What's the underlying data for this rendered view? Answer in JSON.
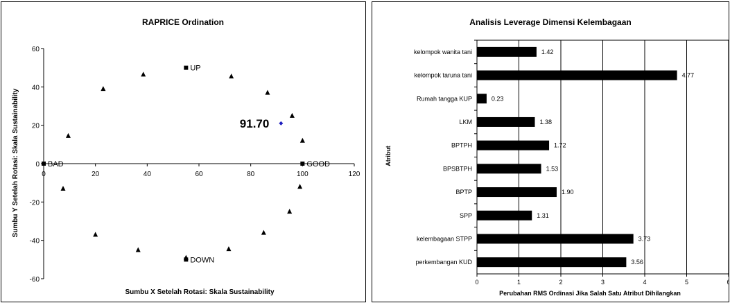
{
  "chart_data": [
    {
      "type": "scatter",
      "title": "RAPRICE Ordination",
      "xlabel": "Sumbu X Setelah Rotasi: Skala Sustainability",
      "ylabel": "Sumbu Y Setelah Rotasi: Skala Sustainability",
      "xlim": [
        0,
        120
      ],
      "ylim": [
        -60,
        60
      ],
      "xticks": [
        "0",
        "20",
        "40",
        "60",
        "80",
        "100",
        "120"
      ],
      "yticks": [
        "60",
        "40",
        "20",
        "0",
        "-20",
        "-40",
        "-60"
      ],
      "grid": false,
      "reference_points": [
        {
          "label": "BAD",
          "x": 0,
          "y": 0
        },
        {
          "label": "GOOD",
          "x": 100,
          "y": 0
        },
        {
          "label": "UP",
          "x": 55,
          "y": 50
        },
        {
          "label": "DOWN",
          "x": 55,
          "y": -50
        }
      ],
      "anchor_points": [
        {
          "x": 7.5,
          "y": -13
        },
        {
          "x": 9.5,
          "y": 14.5
        },
        {
          "x": 20,
          "y": -37
        },
        {
          "x": 23,
          "y": 39
        },
        {
          "x": 36.5,
          "y": -45
        },
        {
          "x": 38.5,
          "y": 46.5
        },
        {
          "x": 55,
          "y": -49
        },
        {
          "x": 71.5,
          "y": -44.5
        },
        {
          "x": 72.5,
          "y": 45.5
        },
        {
          "x": 85,
          "y": -36
        },
        {
          "x": 86.5,
          "y": 37
        },
        {
          "x": 95,
          "y": -25
        },
        {
          "x": 96,
          "y": 25
        },
        {
          "x": 99,
          "y": -12
        },
        {
          "x": 100,
          "y": 12
        }
      ],
      "score_point": {
        "x": 91.7,
        "y": 21,
        "label": "91.70"
      },
      "colors": {
        "anchor": "#000000",
        "score": "#1f1fbf"
      }
    },
    {
      "type": "bar",
      "orientation": "horizontal",
      "title": "Analisis Leverage Dimensi Kelembagaan",
      "xlabel": "Perubahan RMS Ordinasi Jika Salah Satu Atribut Dihilangkan",
      "ylabel": "Atribut",
      "xlim": [
        0,
        6
      ],
      "xticks": [
        "0",
        "1",
        "2",
        "3",
        "4",
        "5",
        "6"
      ],
      "grid": true,
      "categories": [
        "kelompok wanita tani",
        "kelompok taruna tani",
        "Rumah tangga KUP",
        "LKM",
        "BPTPH",
        "BPSBTPH",
        "BPTP",
        "SPP",
        "kelembagaan STPP",
        "perkembangan KUD"
      ],
      "values": [
        1.42,
        4.77,
        0.23,
        1.38,
        1.72,
        1.53,
        1.9,
        1.31,
        3.73,
        3.56
      ],
      "value_labels": [
        "1.42",
        "4.77",
        "0.23",
        "1.38",
        "1.72",
        "1.53",
        "1.90",
        "1.31",
        "3.73",
        "3.56"
      ],
      "colors": {
        "bar": "#000000"
      }
    }
  ]
}
